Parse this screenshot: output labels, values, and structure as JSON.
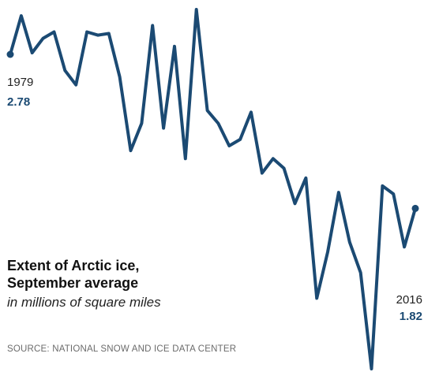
{
  "chart_data": {
    "type": "line",
    "title_line1": "Extent of Arctic ice,",
    "title_line2": "September average",
    "subtitle": "in millions of square miles",
    "source": "SOURCE: NATIONAL SNOW AND ICE DATA CENTER",
    "line_color": "#1b4a73",
    "x": [
      1979,
      1980,
      1981,
      1982,
      1983,
      1984,
      1985,
      1986,
      1987,
      1988,
      1989,
      1990,
      1991,
      1992,
      1993,
      1994,
      1995,
      1996,
      1997,
      1998,
      1999,
      2000,
      2001,
      2002,
      2003,
      2004,
      2005,
      2006,
      2007,
      2008,
      2009,
      2010,
      2011,
      2012,
      2013,
      2014,
      2015,
      2016
    ],
    "values": [
      2.78,
      3.02,
      2.79,
      2.88,
      2.92,
      2.68,
      2.59,
      2.92,
      2.9,
      2.91,
      2.64,
      2.18,
      2.35,
      2.96,
      2.32,
      2.83,
      2.13,
      3.06,
      2.43,
      2.35,
      2.21,
      2.25,
      2.42,
      2.04,
      2.13,
      2.07,
      1.85,
      2.01,
      1.26,
      1.55,
      1.92,
      1.61,
      1.42,
      0.82,
      1.96,
      1.91,
      1.58,
      1.82
    ],
    "start_label": {
      "year": "1979",
      "value": "2.78"
    },
    "end_label": {
      "year": "2016",
      "value": "1.82"
    }
  }
}
